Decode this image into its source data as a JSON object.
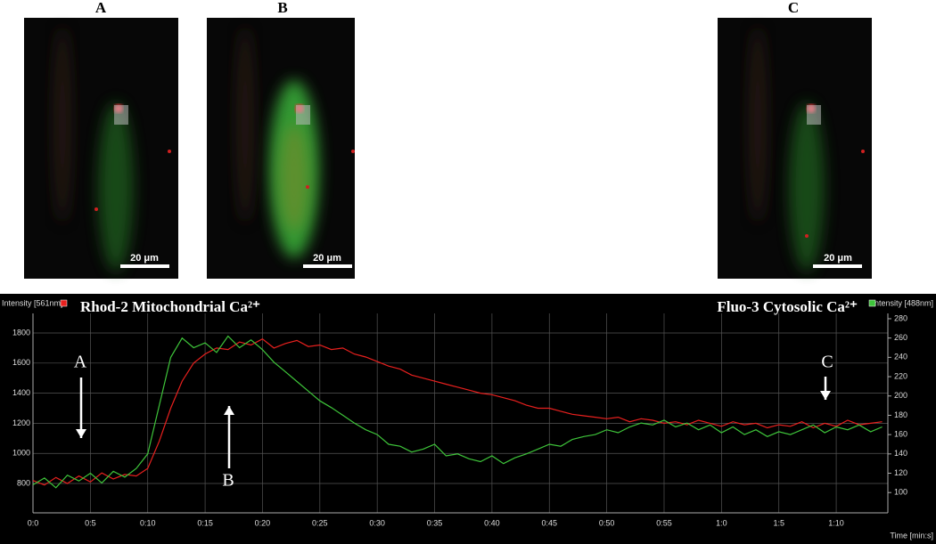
{
  "panels": [
    {
      "label": "A",
      "scale_bar": "20 μm"
    },
    {
      "label": "B",
      "scale_bar": "20 μm"
    },
    {
      "label": "C",
      "scale_bar": "20 μm"
    }
  ],
  "chart_data": {
    "type": "line",
    "ylabel": "Intensity [561nm]",
    "y2label": "Intensity [488nm]",
    "xlabel": "Time [min:s]",
    "x": [
      0,
      1,
      2,
      3,
      4,
      5,
      6,
      7,
      8,
      9,
      10,
      11,
      12,
      13,
      14,
      15,
      16,
      17,
      18,
      19,
      20,
      21,
      22,
      23,
      24,
      25,
      26,
      27,
      28,
      29,
      30,
      31,
      32,
      33,
      34,
      35,
      36,
      37,
      38,
      39,
      40,
      41,
      42,
      43,
      44,
      45,
      46,
      47,
      48,
      49,
      50,
      51,
      52,
      53,
      54,
      55,
      56,
      57,
      58,
      59,
      60,
      61,
      62,
      63,
      64,
      65,
      66,
      67,
      68,
      69,
      70,
      71,
      72,
      73,
      74
    ],
    "xlim": [
      0,
      74.5
    ],
    "xticks": [
      {
        "value": 0,
        "label": "0:0"
      },
      {
        "value": 5,
        "label": "0:5"
      },
      {
        "value": 10,
        "label": "0:10"
      },
      {
        "value": 15,
        "label": "0:15"
      },
      {
        "value": 20,
        "label": "0:20"
      },
      {
        "value": 25,
        "label": "0:25"
      },
      {
        "value": 30,
        "label": "0:30"
      },
      {
        "value": 35,
        "label": "0:35"
      },
      {
        "value": 40,
        "label": "0:40"
      },
      {
        "value": 45,
        "label": "0:45"
      },
      {
        "value": 50,
        "label": "0:50"
      },
      {
        "value": 55,
        "label": "0:55"
      },
      {
        "value": 60,
        "label": "1:0"
      },
      {
        "value": 65,
        "label": "1:5"
      },
      {
        "value": 70,
        "label": "1:10"
      }
    ],
    "ylim": [
      605,
      1930
    ],
    "yticks": [
      800,
      1000,
      1200,
      1400,
      1600,
      1800
    ],
    "y2lim": [
      79,
      285.5
    ],
    "y2ticks": [
      100,
      120,
      140,
      160,
      180,
      200,
      220,
      240,
      260,
      280
    ],
    "grid": true,
    "series": [
      {
        "name": "Rhod-2 Mitochondrial Ca²⁺",
        "color": "#e8201e",
        "values": [
          820,
          790,
          840,
          800,
          850,
          810,
          870,
          830,
          860,
          850,
          900,
          1080,
          1300,
          1480,
          1600,
          1660,
          1700,
          1690,
          1740,
          1720,
          1760,
          1700,
          1730,
          1750,
          1710,
          1720,
          1690,
          1700,
          1660,
          1640,
          1610,
          1580,
          1560,
          1520,
          1500,
          1480,
          1460,
          1440,
          1420,
          1400,
          1390,
          1370,
          1350,
          1320,
          1300,
          1300,
          1280,
          1260,
          1250,
          1240,
          1230,
          1240,
          1210,
          1230,
          1220,
          1200,
          1210,
          1190,
          1220,
          1200,
          1180,
          1210,
          1190,
          1200,
          1170,
          1190,
          1180,
          1210,
          1170,
          1200,
          1180,
          1220,
          1190,
          1200,
          1210
        ]
      },
      {
        "name": "Fluo-3 Cytosolic Ca²⁺",
        "color": "#3ec43a",
        "axis": "y2",
        "values": [
          108,
          115,
          105,
          118,
          112,
          120,
          110,
          122,
          116,
          125,
          140,
          190,
          240,
          260,
          250,
          255,
          245,
          262,
          250,
          258,
          248,
          235,
          225,
          215,
          205,
          195,
          188,
          180,
          172,
          165,
          160,
          150,
          148,
          142,
          145,
          150,
          138,
          140,
          135,
          132,
          138,
          130,
          136,
          140,
          145,
          150,
          148,
          155,
          158,
          160,
          165,
          162,
          168,
          172,
          170,
          175,
          168,
          172,
          165,
          170,
          162,
          168,
          160,
          165,
          158,
          163,
          160,
          165,
          170,
          162,
          168,
          165,
          170,
          163,
          168
        ]
      }
    ],
    "annotations": [
      "A",
      "B",
      "C"
    ]
  }
}
